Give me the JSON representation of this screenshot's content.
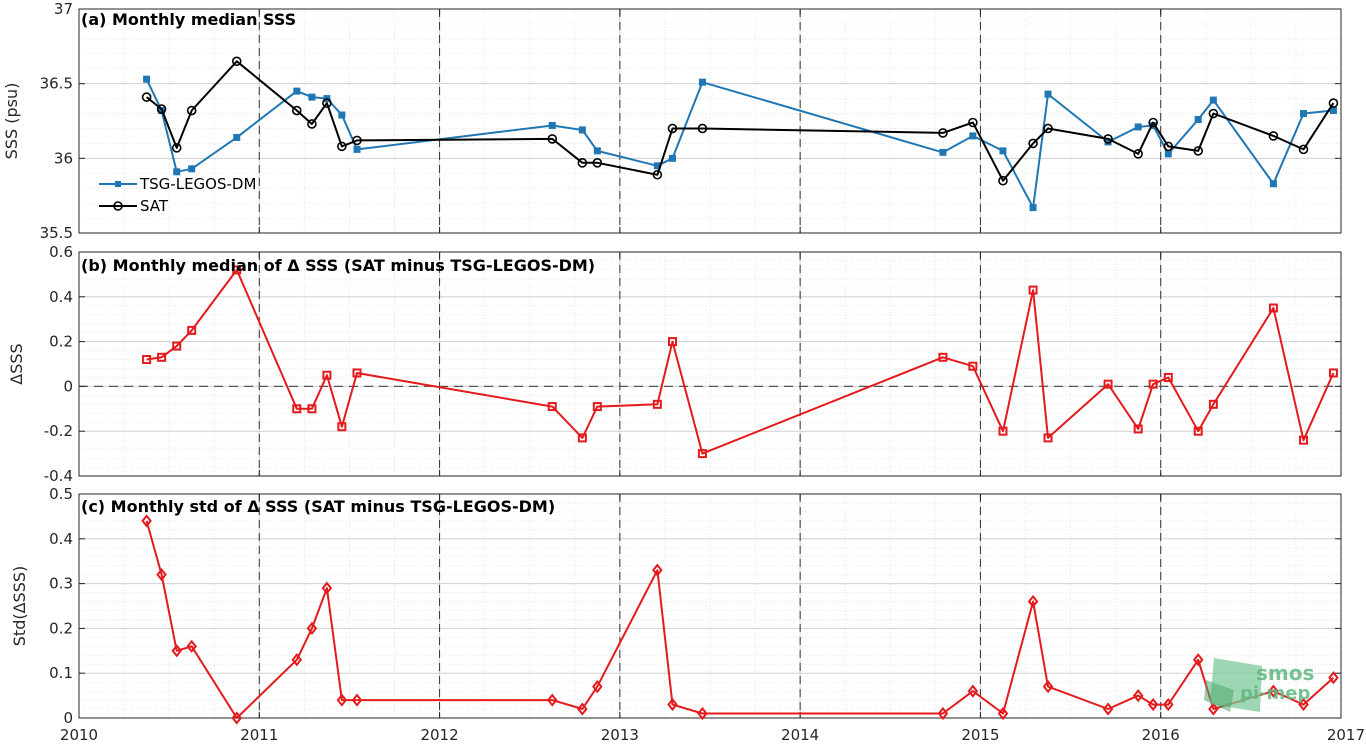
{
  "figure": {
    "x_tick_labels": [
      "2010",
      "2011",
      "2012",
      "2013",
      "2014",
      "2015",
      "2016",
      "2017"
    ],
    "watermark": [
      "smos",
      "pi-mep"
    ]
  },
  "chart_data": [
    {
      "type": "line",
      "title": "(a) Monthly median SSS",
      "ylabel": "SSS (psu)",
      "xlim": [
        2010,
        2017
      ],
      "ylim": [
        35.5,
        37
      ],
      "y_ticks": [
        35.5,
        36,
        36.5,
        37
      ],
      "y_tick_labels": [
        "35.5",
        "36",
        "36.5",
        "37"
      ],
      "grid": true,
      "legend_position": "bottom-left",
      "series": [
        {
          "name": "TSG-LEGOS-DM",
          "color": "#1f77b4",
          "marker": "filled-square",
          "x": [
            2010.375,
            2010.458,
            2010.542,
            2010.625,
            2010.875,
            2011.208,
            2011.292,
            2011.375,
            2011.458,
            2011.542,
            2012.625,
            2012.792,
            2012.875,
            2013.208,
            2013.292,
            2013.458,
            2014.792,
            2014.958,
            2015.125,
            2015.292,
            2015.375,
            2015.708,
            2015.875,
            2015.958,
            2016.042,
            2016.208,
            2016.292,
            2016.625,
            2016.792,
            2016.958
          ],
          "y": [
            36.53,
            36.32,
            35.91,
            35.93,
            36.14,
            36.45,
            36.41,
            36.4,
            36.29,
            36.06,
            36.22,
            36.19,
            36.05,
            35.95,
            36.0,
            36.51,
            36.04,
            36.15,
            36.05,
            35.67,
            36.43,
            36.11,
            36.21,
            36.22,
            36.03,
            36.26,
            36.39,
            35.83,
            36.3,
            36.32
          ]
        },
        {
          "name": "SAT",
          "color": "#000000",
          "marker": "open-circle",
          "x": [
            2010.375,
            2010.458,
            2010.542,
            2010.625,
            2010.875,
            2011.208,
            2011.292,
            2011.375,
            2011.458,
            2011.542,
            2012.625,
            2012.792,
            2012.875,
            2013.208,
            2013.292,
            2013.458,
            2014.792,
            2014.958,
            2015.125,
            2015.292,
            2015.375,
            2015.708,
            2015.875,
            2015.958,
            2016.042,
            2016.208,
            2016.292,
            2016.625,
            2016.792,
            2016.958
          ],
          "y": [
            36.41,
            36.33,
            36.07,
            36.32,
            36.65,
            36.32,
            36.23,
            36.37,
            36.08,
            36.12,
            36.13,
            35.97,
            35.97,
            35.89,
            36.2,
            36.2,
            36.17,
            36.24,
            35.85,
            36.1,
            36.2,
            36.13,
            36.03,
            36.24,
            36.08,
            36.05,
            36.3,
            36.15,
            36.06,
            36.37
          ]
        }
      ]
    },
    {
      "type": "line",
      "title": "(b) Monthly median of Δ SSS (SAT minus TSG-LEGOS-DM)",
      "ylabel": "ΔSSS",
      "xlim": [
        2010,
        2017
      ],
      "ylim": [
        -0.4,
        0.6
      ],
      "y_ticks": [
        -0.4,
        -0.2,
        0,
        0.2,
        0.4,
        0.6
      ],
      "y_tick_labels": [
        "-0.4",
        "-0.2",
        "0",
        "0.2",
        "0.4",
        "0.6"
      ],
      "reference_line": 0,
      "grid": true,
      "series": [
        {
          "color": "#e41a1c",
          "marker": "square",
          "x": [
            2010.375,
            2010.458,
            2010.542,
            2010.625,
            2010.875,
            2011.208,
            2011.292,
            2011.375,
            2011.458,
            2011.542,
            2012.625,
            2012.792,
            2012.875,
            2013.208,
            2013.292,
            2013.458,
            2014.792,
            2014.958,
            2015.125,
            2015.292,
            2015.375,
            2015.708,
            2015.875,
            2015.958,
            2016.042,
            2016.208,
            2016.292,
            2016.625,
            2016.792,
            2016.958
          ],
          "y": [
            0.12,
            0.13,
            0.18,
            0.25,
            0.52,
            -0.1,
            -0.1,
            0.05,
            -0.18,
            0.06,
            -0.09,
            -0.23,
            -0.09,
            -0.08,
            0.2,
            -0.3,
            0.13,
            0.09,
            -0.2,
            0.43,
            -0.23,
            0.01,
            -0.19,
            0.01,
            0.04,
            -0.2,
            -0.08,
            0.35,
            -0.24,
            0.06
          ]
        }
      ]
    },
    {
      "type": "line",
      "title": "(c) Monthly std of Δ SSS (SAT minus TSG-LEGOS-DM)",
      "ylabel": "Std(ΔSSS)",
      "xlim": [
        2010,
        2017
      ],
      "ylim": [
        0,
        0.5
      ],
      "y_ticks": [
        0,
        0.1,
        0.2,
        0.3,
        0.4,
        0.5
      ],
      "y_tick_labels": [
        "0",
        "0.1",
        "0.2",
        "0.3",
        "0.4",
        "0.5"
      ],
      "grid": true,
      "series": [
        {
          "color": "#e41a1c",
          "marker": "diamond",
          "x": [
            2010.375,
            2010.458,
            2010.542,
            2010.625,
            2010.875,
            2011.208,
            2011.292,
            2011.375,
            2011.458,
            2011.542,
            2012.625,
            2012.792,
            2012.875,
            2013.208,
            2013.292,
            2013.458,
            2014.792,
            2014.958,
            2015.125,
            2015.292,
            2015.375,
            2015.708,
            2015.875,
            2015.958,
            2016.042,
            2016.208,
            2016.292,
            2016.625,
            2016.792,
            2016.958
          ],
          "y": [
            0.44,
            0.32,
            0.15,
            0.16,
            0.0,
            0.13,
            0.2,
            0.29,
            0.04,
            0.04,
            0.04,
            0.02,
            0.07,
            0.33,
            0.03,
            0.01,
            0.01,
            0.06,
            0.01,
            0.26,
            0.07,
            0.02,
            0.05,
            0.03,
            0.03,
            0.13,
            0.02,
            0.06,
            0.03,
            0.09
          ]
        }
      ]
    }
  ]
}
